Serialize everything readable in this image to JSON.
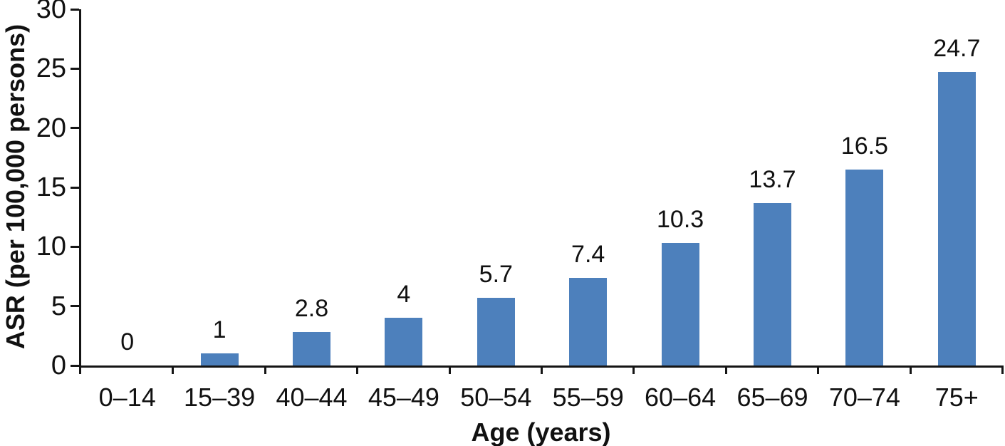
{
  "chart_data": {
    "type": "bar",
    "title": "",
    "categories": [
      "0–14",
      "15–39",
      "40–44",
      "45–49",
      "50–54",
      "55–59",
      "60–64",
      "65–69",
      "70–74",
      "75+"
    ],
    "values": [
      0,
      1,
      2.8,
      4,
      5.7,
      7.4,
      10.3,
      13.7,
      16.5,
      24.7
    ],
    "data_labels": [
      "0",
      "1",
      "2.8",
      "4",
      "5.7",
      "7.4",
      "10.3",
      "13.7",
      "16.5",
      "24.7"
    ],
    "xlabel": "Age (years)",
    "ylabel": "ASR (per 100,000 persons)",
    "ylim": [
      0,
      30
    ],
    "yticks": [
      0,
      5,
      10,
      15,
      20,
      25,
      30
    ],
    "grid": false,
    "legend": "none",
    "bar_color": "#4d80bc",
    "axis_color": "#151515",
    "text_color": "#111111"
  }
}
